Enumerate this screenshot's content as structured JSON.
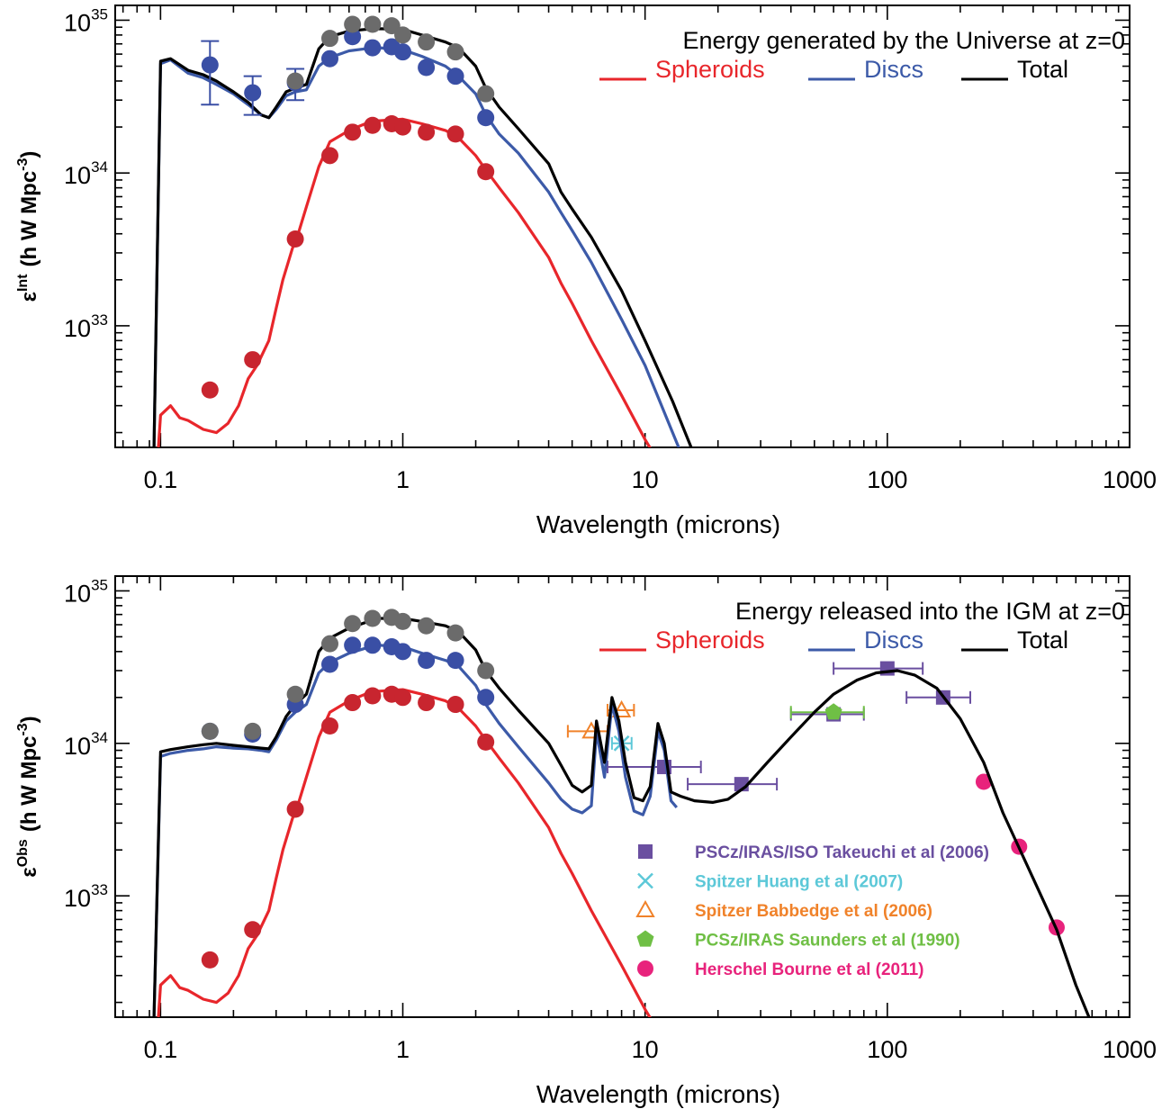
{
  "colors": {
    "spheroids": "#e8262b",
    "spheroids_pts": "#c8252f",
    "discs": "#3c5aa8",
    "discs_pts": "#3a4fa5",
    "total": "#000000",
    "total_pts": "#6b6b6b",
    "takeuchi": "#6a4fa0",
    "huang": "#5cc8d8",
    "babbedge": "#f0822a",
    "saunders": "#6fbf45",
    "bourne": "#e8237c"
  },
  "chart_data": [
    {
      "type": "line",
      "title": "Energy generated by the Universe at z=0",
      "xlabel": "Wavelength (microns)",
      "ylabel": "ε",
      "ylabel_sup": "Int",
      "ylabel_units": "(h W Mpc",
      "ylabel_units_sup": "-3",
      "xscale": "log",
      "yscale": "log",
      "xlim": [
        0.065,
        1000
      ],
      "ylim": [
        1.6e+32,
        1.25e+35
      ],
      "xticks": [
        0.1,
        1,
        10,
        100,
        1000
      ],
      "xtick_labels": [
        "0.1",
        "1",
        "10",
        "100",
        "1000"
      ],
      "yticks": [
        1e+33,
        1e+34,
        1e+35
      ],
      "ytick_base": "10",
      "ytick_exps": [
        "33",
        "34",
        "35"
      ],
      "legend": [
        {
          "label": "Spheroids",
          "series": "spheroids"
        },
        {
          "label": "Discs",
          "series": "discs"
        },
        {
          "label": "Total",
          "series": "total"
        }
      ],
      "series": [
        {
          "key": "spheroids",
          "name": "Spheroids",
          "x": [
            0.098,
            0.1,
            0.11,
            0.12,
            0.13,
            0.15,
            0.17,
            0.19,
            0.21,
            0.23,
            0.25,
            0.28,
            0.3,
            0.32,
            0.35,
            0.37,
            0.4,
            0.45,
            0.5,
            0.6,
            0.7,
            0.8,
            1.0,
            1.2,
            1.5,
            1.7,
            2.0,
            2.2,
            2.5,
            3.0,
            4.0,
            4.5,
            5.0,
            6.0,
            8.0,
            10.0,
            11.0
          ],
          "y": [
            1.6e+32,
            2.6e+32,
            3e+32,
            2.5e+32,
            2.4e+32,
            2.1e+32,
            2e+32,
            2.3e+32,
            3e+32,
            4.5e+32,
            5.5e+32,
            8e+32,
            1.3e+33,
            2e+33,
            3.2e+33,
            4e+33,
            6e+33,
            1.1e+34,
            1.6e+34,
            1.9e+34,
            2.1e+34,
            2.2e+34,
            2.25e+34,
            2.1e+34,
            1.9e+34,
            1.7e+34,
            1.3e+34,
            1.05e+34,
            8e+33,
            5.5e+33,
            2.8e+33,
            1.9e+33,
            1.4e+33,
            8e+32,
            3.5e+32,
            1.8e+32,
            1.4e+32
          ]
        },
        {
          "key": "discs",
          "name": "Discs",
          "x": [
            0.094,
            0.1,
            0.11,
            0.13,
            0.15,
            0.17,
            0.2,
            0.23,
            0.26,
            0.28,
            0.3,
            0.33,
            0.36,
            0.4,
            0.45,
            0.5,
            0.6,
            0.7,
            0.8,
            1.0,
            1.2,
            1.5,
            1.7,
            2.0,
            2.2,
            2.5,
            3.0,
            4.0,
            4.5,
            5.0,
            6.0,
            8.0,
            10.0,
            13.0,
            14.0
          ],
          "y": [
            1.6e+32,
            5.2e+34,
            5.5e+34,
            4.5e+34,
            4.2e+34,
            3.8e+34,
            3.3e+34,
            2.8e+34,
            2.4e+34,
            2.3e+34,
            2.6e+34,
            3.2e+34,
            3.4e+34,
            3.5e+34,
            5e+34,
            5.7e+34,
            6.3e+34,
            6.5e+34,
            6.6e+34,
            6.4e+34,
            5.8e+34,
            5e+34,
            4.3e+34,
            3.3e+34,
            2.4e+34,
            1.8e+34,
            1.35e+34,
            7.5e+33,
            5.5e+33,
            4.2e+33,
            2.6e+33,
            1.1e+33,
            5.5e+32,
            2e+32,
            1.5e+32
          ]
        },
        {
          "key": "total",
          "name": "Total",
          "x": [
            0.094,
            0.1,
            0.11,
            0.13,
            0.15,
            0.17,
            0.2,
            0.23,
            0.26,
            0.28,
            0.3,
            0.33,
            0.36,
            0.4,
            0.45,
            0.5,
            0.6,
            0.7,
            0.8,
            1.0,
            1.2,
            1.5,
            1.7,
            2.0,
            2.2,
            2.5,
            3.0,
            4.0,
            4.5,
            5.0,
            6.0,
            8.0,
            10.0,
            13.0,
            15.5
          ],
          "y": [
            1.6e+32,
            5.4e+34,
            5.6e+34,
            4.7e+34,
            4.4e+34,
            4e+34,
            3.4e+34,
            2.9e+34,
            2.4e+34,
            2.3e+34,
            2.7e+34,
            3.4e+34,
            3.6e+34,
            3.8e+34,
            6.5e+34,
            7.8e+34,
            8.5e+34,
            8.7e+34,
            8.8e+34,
            8.7e+34,
            8e+34,
            7.2e+34,
            6.6e+34,
            5e+34,
            3.6e+34,
            2.7e+34,
            1.95e+34,
            1.15e+34,
            7.5e+33,
            5.8e+33,
            3.8e+33,
            1.7e+33,
            8e+32,
            3.2e+32,
            1.6e+32
          ]
        }
      ],
      "points": [
        {
          "series": "spheroids",
          "x": [
            0.16,
            0.24,
            0.36,
            0.5,
            0.62,
            0.75,
            0.9,
            1.0,
            1.25,
            1.65,
            2.2
          ],
          "y": [
            3.8e+32,
            6e+32,
            3.7e+33,
            1.3e+34,
            1.85e+34,
            2.05e+34,
            2.1e+34,
            2e+34,
            1.85e+34,
            1.8e+34,
            1.02e+34
          ],
          "errlo": [],
          "errhi": []
        },
        {
          "series": "discs",
          "x": [
            0.16,
            0.24,
            0.36,
            0.5,
            0.62,
            0.75,
            0.9,
            1.0,
            1.25,
            1.65,
            2.2
          ],
          "y": [
            5.1e+34,
            3.35e+34,
            3.9e+34,
            5.6e+34,
            7.8e+34,
            6.6e+34,
            6.7e+34,
            6.2e+34,
            4.9e+34,
            4.3e+34,
            2.3e+34
          ],
          "errlo": [
            2.8e+34,
            2.4e+34,
            3e+34,
            0,
            0,
            0,
            0,
            0,
            0,
            0,
            0
          ],
          "errhi": [
            7.3e+34,
            4.3e+34,
            4.8e+34,
            0,
            0,
            0,
            0,
            0,
            0,
            0,
            0
          ]
        },
        {
          "series": "total",
          "x": [
            0.36,
            0.5,
            0.62,
            0.75,
            0.9,
            1.0,
            1.25,
            1.65,
            2.2
          ],
          "y": [
            4e+34,
            7.6e+34,
            9.4e+34,
            9.4e+34,
            9.2e+34,
            8e+34,
            7.2e+34,
            6.2e+34,
            3.3e+34
          ],
          "errlo": [],
          "errhi": []
        }
      ]
    },
    {
      "type": "line",
      "title": "Energy released into the IGM at z=0",
      "xlabel": "Wavelength (microns)",
      "ylabel": "ε",
      "ylabel_sup": "Obs",
      "ylabel_units": "(h W Mpc",
      "ylabel_units_sup": "-3",
      "xscale": "log",
      "yscale": "log",
      "xlim": [
        0.065,
        1000
      ],
      "ylim": [
        1.6e+32,
        1.25e+35
      ],
      "xticks": [
        0.1,
        1,
        10,
        100,
        1000
      ],
      "xtick_labels": [
        "0.1",
        "1",
        "10",
        "100",
        "1000"
      ],
      "yticks": [
        1e+33,
        1e+34,
        1e+35
      ],
      "ytick_base": "10",
      "ytick_exps": [
        "33",
        "34",
        "35"
      ],
      "legend": [
        {
          "label": "Spheroids",
          "series": "spheroids"
        },
        {
          "label": "Discs",
          "series": "discs"
        },
        {
          "label": "Total",
          "series": "total"
        }
      ],
      "obs_legend": [
        {
          "label": "PSCz/IRAS/ISO Takeuchi et al (2006)",
          "marker": "square",
          "color_key": "takeuchi"
        },
        {
          "label": "Spitzer Huang et al (2007)",
          "marker": "cross",
          "color_key": "huang"
        },
        {
          "label": "Spitzer Babbedge et al (2006)",
          "marker": "triangle",
          "color_key": "babbedge"
        },
        {
          "label": "PCSz/IRAS Saunders et al (1990)",
          "marker": "pentagon",
          "color_key": "saunders"
        },
        {
          "label": "Herschel Bourne et al (2011)",
          "marker": "circle",
          "color_key": "bourne"
        }
      ],
      "series": [
        {
          "key": "spheroids",
          "name": "Spheroids",
          "x": [
            0.098,
            0.1,
            0.11,
            0.12,
            0.13,
            0.15,
            0.17,
            0.19,
            0.21,
            0.23,
            0.25,
            0.28,
            0.3,
            0.32,
            0.35,
            0.37,
            0.4,
            0.45,
            0.5,
            0.6,
            0.7,
            0.8,
            1.0,
            1.2,
            1.5,
            1.7,
            2.0,
            2.2,
            2.5,
            3.0,
            4.0,
            4.5,
            5.0,
            6.0,
            8.0,
            10.0,
            11.0
          ],
          "y": [
            1.6e+32,
            2.6e+32,
            3e+32,
            2.5e+32,
            2.4e+32,
            2.1e+32,
            2e+32,
            2.3e+32,
            3e+32,
            4.5e+32,
            5.5e+32,
            8e+32,
            1.3e+33,
            2e+33,
            3.2e+33,
            4e+33,
            6e+33,
            1.1e+34,
            1.6e+34,
            1.9e+34,
            2.1e+34,
            2.2e+34,
            2.25e+34,
            2.1e+34,
            1.9e+34,
            1.7e+34,
            1.3e+34,
            1.05e+34,
            8e+33,
            5.5e+33,
            2.8e+33,
            1.9e+33,
            1.4e+33,
            8e+32,
            3.5e+32,
            1.8e+32,
            1.4e+32
          ]
        },
        {
          "key": "discs",
          "name": "Discs",
          "x": [
            0.094,
            0.1,
            0.11,
            0.13,
            0.15,
            0.17,
            0.2,
            0.23,
            0.26,
            0.28,
            0.3,
            0.33,
            0.36,
            0.4,
            0.45,
            0.5,
            0.6,
            0.7,
            0.8,
            1.0,
            1.2,
            1.5,
            1.7,
            2.0,
            2.2,
            2.5,
            3.0,
            4.0,
            4.5,
            5.0,
            5.5,
            6.0,
            6.3,
            6.8,
            7.3,
            7.8,
            8.3,
            9.0,
            9.8,
            10.5,
            11.3,
            12.0,
            12.8,
            13.5
          ],
          "y": [
            1.6e+32,
            8.2e+33,
            8.6e+33,
            9e+33,
            9.2e+33,
            9.5e+33,
            9.3e+33,
            9.2e+33,
            9e+33,
            8.8e+33,
            1.05e+34,
            1.4e+34,
            1.6e+34,
            1.8e+34,
            2.9e+34,
            3.4e+34,
            3.9e+34,
            4.2e+34,
            4.4e+34,
            4.3e+34,
            3.9e+34,
            3.5e+34,
            3.2e+34,
            2.4e+34,
            1.8e+34,
            1.35e+34,
            9.5e+33,
            5.5e+33,
            4.3e+33,
            3.7e+33,
            3.5e+33,
            3.9e+33,
            1.2e+34,
            6e+33,
            1.8e+34,
            1.2e+34,
            6e+33,
            3.6e+33,
            3.4e+33,
            4.5e+33,
            1.2e+34,
            9e+33,
            4.2e+33,
            3.8e+33
          ]
        },
        {
          "key": "total",
          "name": "Total",
          "x": [
            0.094,
            0.1,
            0.11,
            0.13,
            0.15,
            0.17,
            0.2,
            0.23,
            0.26,
            0.28,
            0.3,
            0.33,
            0.36,
            0.4,
            0.45,
            0.5,
            0.6,
            0.7,
            0.8,
            1.0,
            1.2,
            1.5,
            1.7,
            2.0,
            2.2,
            2.5,
            3.0,
            4.0,
            4.5,
            5.0,
            5.5,
            6.0,
            6.3,
            6.8,
            7.3,
            7.8,
            8.3,
            9.0,
            9.8,
            10.5,
            11.3,
            12.0,
            12.8,
            14.0,
            16.0,
            19.0,
            22.0,
            26.0,
            32.0,
            40.0,
            50.0,
            60.0,
            75.0,
            90.0,
            110.0,
            130.0,
            160.0,
            200.0,
            250.0,
            300.0,
            400.0,
            500.0,
            600.0,
            680.0
          ],
          "y": [
            1.6e+32,
            8.8e+33,
            9.1e+33,
            9.5e+33,
            9.8e+33,
            1e+34,
            9.7e+33,
            9.5e+33,
            9.3e+33,
            9.2e+33,
            1.1e+34,
            1.5e+34,
            1.8e+34,
            2.1e+34,
            4e+34,
            4.9e+34,
            5.7e+34,
            6.2e+34,
            6.6e+34,
            6.6e+34,
            6.3e+34,
            5.9e+34,
            5.4e+34,
            4.1e+34,
            3e+34,
            2.3e+34,
            1.65e+34,
            1e+34,
            7.2e+33,
            5.3e+33,
            4.8e+33,
            5.3e+33,
            1.4e+34,
            7.5e+33,
            2e+34,
            1.4e+34,
            7.5e+33,
            4.4e+33,
            4.2e+33,
            5.2e+33,
            1.35e+34,
            1e+34,
            4.8e+33,
            4.5e+33,
            4.2e+33,
            4.1e+33,
            4.3e+33,
            5.2e+33,
            7.5e+33,
            1.1e+34,
            1.6e+34,
            2.1e+34,
            2.6e+34,
            2.9e+34,
            3e+34,
            2.8e+34,
            2.3e+34,
            1.45e+34,
            7.5e+33,
            3.5e+33,
            1.3e+33,
            6e+32,
            2.6e+32,
            1.6e+32
          ]
        }
      ],
      "points": [
        {
          "series": "spheroids",
          "x": [
            0.16,
            0.24,
            0.36,
            0.5,
            0.62,
            0.75,
            0.9,
            1.0,
            1.25,
            1.65,
            2.2
          ],
          "y": [
            3.8e+32,
            6e+32,
            3.7e+33,
            1.3e+34,
            1.85e+34,
            2.05e+34,
            2.1e+34,
            2e+34,
            1.85e+34,
            1.8e+34,
            1.02e+34
          ],
          "errlo": [],
          "errhi": []
        },
        {
          "series": "discs",
          "x": [
            0.16,
            0.24,
            0.36,
            0.5,
            0.62,
            0.75,
            0.9,
            1.0,
            1.25,
            1.65,
            2.2
          ],
          "y": [
            1.2e+34,
            1.15e+34,
            1.8e+34,
            3.3e+34,
            4.4e+34,
            4.4e+34,
            4.3e+34,
            4e+34,
            3.5e+34,
            3.5e+34,
            2e+34
          ],
          "errlo": [],
          "errhi": []
        },
        {
          "series": "total",
          "x": [
            0.16,
            0.24,
            0.36,
            0.5,
            0.62,
            0.75,
            0.9,
            1.0,
            1.25,
            1.65,
            2.2
          ],
          "y": [
            1.2e+34,
            1.2e+34,
            2.1e+34,
            4.5e+34,
            6.1e+34,
            6.6e+34,
            6.7e+34,
            6.3e+34,
            5.9e+34,
            5.3e+34,
            3e+34
          ],
          "errlo": [],
          "errhi": []
        }
      ],
      "observations": [
        {
          "color_key": "takeuchi",
          "marker": "square",
          "x": [
            12.0,
            25.0,
            60.0,
            100.0,
            170.0
          ],
          "y": [
            7e+33,
            5.4e+33,
            1.55e+34,
            3.1e+34,
            2e+34
          ],
          "xerr_lo": [
            7.0,
            15.0,
            40.0,
            60.0,
            120.0
          ],
          "xerr_hi": [
            17.0,
            35.0,
            80.0,
            140.0,
            220.0
          ]
        },
        {
          "color_key": "huang",
          "marker": "cross",
          "x": [
            8.0
          ],
          "y": [
            1e+34
          ],
          "xerr_lo": [
            7.3
          ],
          "xerr_hi": [
            8.8
          ]
        },
        {
          "color_key": "babbedge",
          "marker": "triangle",
          "x": [
            6.0,
            8.0
          ],
          "y": [
            1.2e+34,
            1.65e+34
          ],
          "xerr_lo": [
            4.8,
            7.0
          ],
          "xerr_hi": [
            7.0,
            9.0
          ]
        },
        {
          "color_key": "saunders",
          "marker": "pentagon",
          "x": [
            60.0
          ],
          "y": [
            1.6e+34
          ],
          "xerr_lo": [
            40.0
          ],
          "xerr_hi": [
            80.0
          ]
        },
        {
          "color_key": "bourne",
          "marker": "circle",
          "x": [
            250.0,
            350.0,
            500.0
          ],
          "y": [
            5.6e+33,
            2.1e+33,
            6.2e+32
          ],
          "xerr_lo": [],
          "xerr_hi": []
        }
      ]
    }
  ]
}
